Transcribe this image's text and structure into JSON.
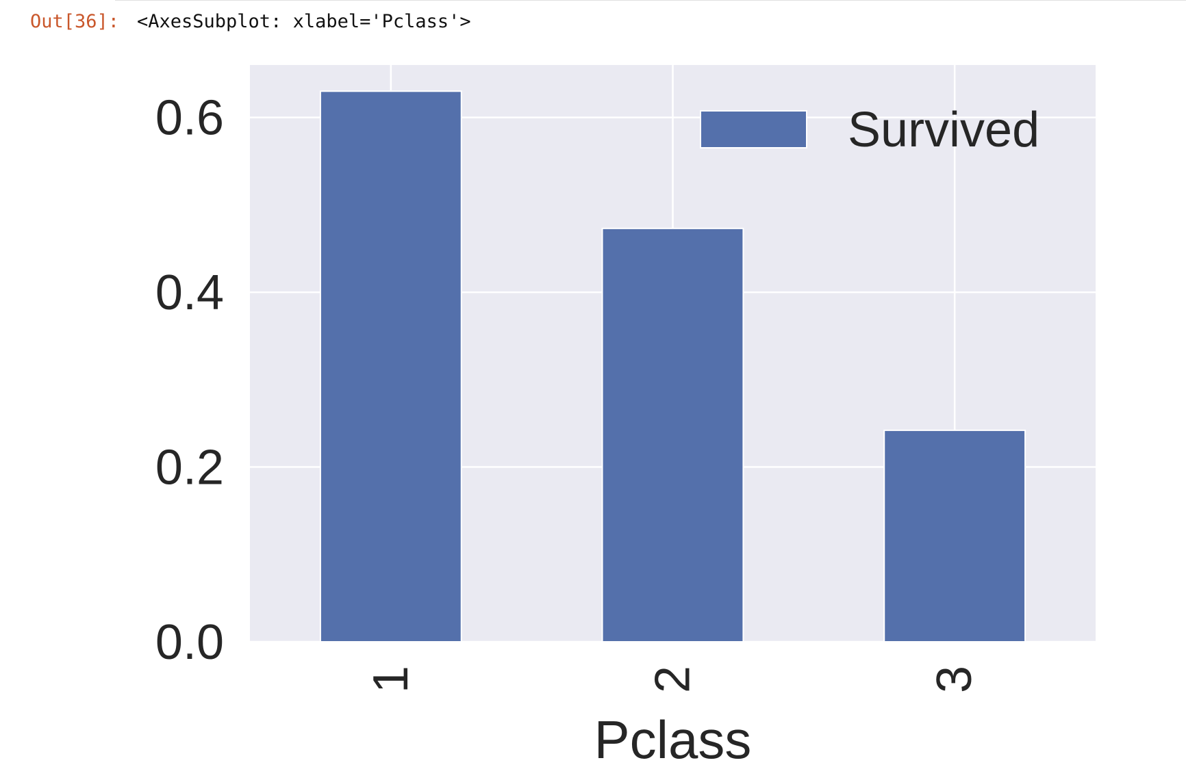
{
  "output": {
    "prompt": "Out[36]:",
    "repr": "<AxesSubplot: xlabel='Pclass'>"
  },
  "chart_data": {
    "type": "bar",
    "categories": [
      "1",
      "2",
      "3"
    ],
    "series": [
      {
        "name": "Survived",
        "values": [
          0.63,
          0.473,
          0.242
        ]
      }
    ],
    "xlabel": "Pclass",
    "ylabel": "",
    "ylim": [
      0,
      0.66
    ],
    "yticks": [
      "0.0",
      "0.2",
      "0.4",
      "0.6"
    ],
    "ytick_values": [
      0,
      0.2,
      0.4,
      0.6
    ],
    "grid": true,
    "legend": "top-right",
    "colors": {
      "bar": "#5470ab",
      "axes_bg": "#eaeaf2",
      "grid": "#ffffff",
      "text": "#262626"
    }
  }
}
